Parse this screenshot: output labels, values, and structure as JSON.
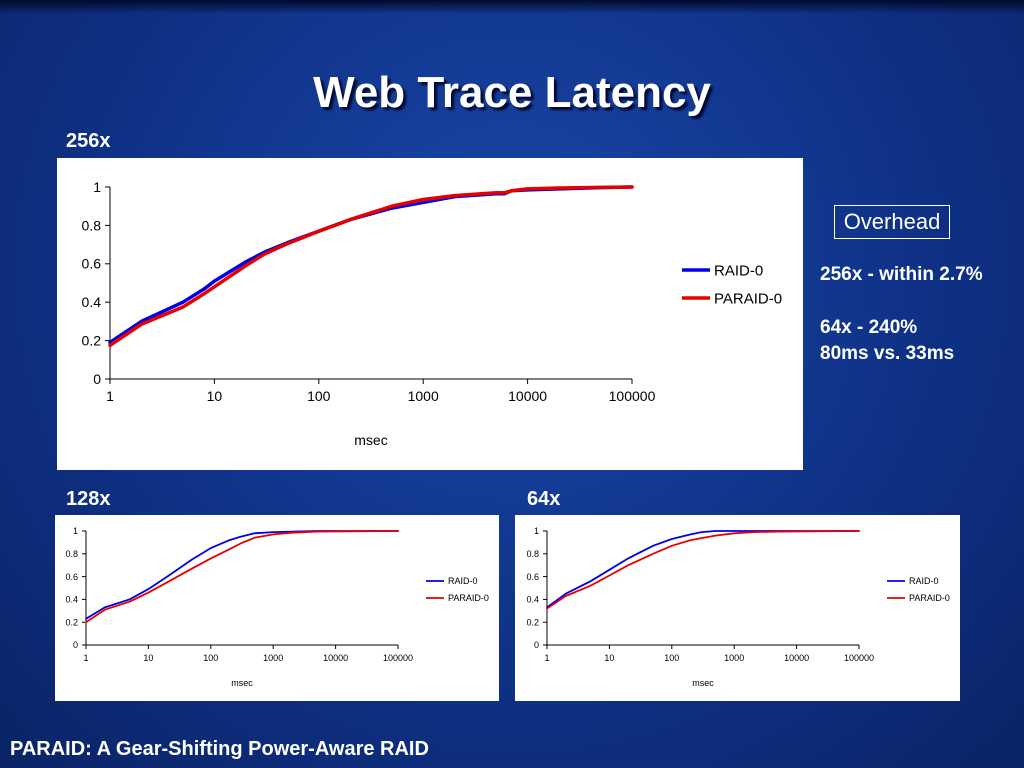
{
  "slide": {
    "title": "Web Trace Latency",
    "footer": "PARAID: A Gear-Shifting Power-Aware RAID"
  },
  "overhead": {
    "heading": "Overhead",
    "lines": [
      "256x - within 2.7%",
      "64x - 240%",
      "80ms vs. 33ms"
    ]
  },
  "colors": {
    "raid0": "#0000e6",
    "paraid0": "#e60000",
    "background": "#0f3287"
  },
  "chart_data": [
    {
      "label": "256x",
      "type": "line",
      "xscale": "log",
      "xlabel": "msec",
      "ylabel": "",
      "xlim": [
        1,
        100000
      ],
      "ylim": [
        0,
        1
      ],
      "xticks": [
        "1",
        "10",
        "100",
        "1000",
        "10000",
        "100000"
      ],
      "yticks": [
        "0",
        "0.2",
        "0.4",
        "0.6",
        "0.8",
        "1"
      ],
      "legend": "right",
      "series": [
        {
          "name": "RAID-0",
          "color": "#0000e6",
          "x": [
            1,
            2,
            5,
            8,
            10,
            20,
            30,
            50,
            100,
            200,
            500,
            1000,
            2000,
            5000,
            6000,
            7000,
            10000,
            20000,
            50000,
            100000
          ],
          "y": [
            0.19,
            0.3,
            0.4,
            0.47,
            0.51,
            0.61,
            0.66,
            0.71,
            0.77,
            0.83,
            0.89,
            0.92,
            0.95,
            0.965,
            0.965,
            0.98,
            0.985,
            0.99,
            0.997,
            1.0
          ]
        },
        {
          "name": "PARAID-0",
          "color": "#e60000",
          "x": [
            1,
            2,
            5,
            8,
            10,
            20,
            30,
            50,
            100,
            200,
            500,
            1000,
            2000,
            5000,
            6000,
            7000,
            10000,
            20000,
            50000,
            100000
          ],
          "y": [
            0.175,
            0.285,
            0.375,
            0.445,
            0.48,
            0.59,
            0.65,
            0.705,
            0.77,
            0.83,
            0.9,
            0.935,
            0.955,
            0.97,
            0.97,
            0.98,
            0.99,
            0.995,
            0.998,
            1.0
          ]
        }
      ]
    },
    {
      "label": "128x",
      "type": "line",
      "xscale": "log",
      "xlabel": "msec",
      "ylabel": "",
      "xlim": [
        1,
        100000
      ],
      "ylim": [
        0,
        1
      ],
      "xticks": [
        "1",
        "10",
        "100",
        "1000",
        "10000",
        "100000"
      ],
      "yticks": [
        "0",
        "0.2",
        "0.4",
        "0.6",
        "0.8",
        "1"
      ],
      "legend": "right",
      "series": [
        {
          "name": "RAID-0",
          "color": "#0000e6",
          "x": [
            1,
            2,
            5,
            10,
            20,
            50,
            100,
            200,
            300,
            500,
            1000,
            2000,
            5000,
            100000
          ],
          "y": [
            0.23,
            0.33,
            0.4,
            0.49,
            0.6,
            0.75,
            0.85,
            0.92,
            0.95,
            0.98,
            0.99,
            0.995,
            1.0,
            1.0
          ]
        },
        {
          "name": "PARAID-0",
          "color": "#e60000",
          "x": [
            1,
            2,
            5,
            10,
            20,
            50,
            100,
            200,
            300,
            500,
            1000,
            2000,
            5000,
            100000
          ],
          "y": [
            0.2,
            0.31,
            0.38,
            0.46,
            0.55,
            0.67,
            0.76,
            0.84,
            0.89,
            0.94,
            0.97,
            0.985,
            0.995,
            1.0
          ]
        }
      ]
    },
    {
      "label": "64x",
      "type": "line",
      "xscale": "log",
      "xlabel": "msec",
      "ylabel": "",
      "xlim": [
        1,
        100000
      ],
      "ylim": [
        0,
        1
      ],
      "xticks": [
        "1",
        "10",
        "100",
        "1000",
        "10000",
        "100000"
      ],
      "yticks": [
        "0",
        "0.2",
        "0.4",
        "0.6",
        "0.8",
        "1"
      ],
      "legend": "right",
      "series": [
        {
          "name": "RAID-0",
          "color": "#0000e6",
          "x": [
            1,
            2,
            5,
            10,
            20,
            50,
            100,
            200,
            300,
            500,
            1000,
            100000
          ],
          "y": [
            0.33,
            0.45,
            0.56,
            0.66,
            0.76,
            0.87,
            0.93,
            0.97,
            0.99,
            1.0,
            1.0,
            1.0
          ]
        },
        {
          "name": "PARAID-0",
          "color": "#e60000",
          "x": [
            1,
            2,
            5,
            10,
            20,
            50,
            100,
            200,
            500,
            1000,
            2000,
            5000,
            100000
          ],
          "y": [
            0.32,
            0.43,
            0.52,
            0.61,
            0.7,
            0.8,
            0.87,
            0.92,
            0.96,
            0.98,
            0.99,
            0.995,
            1.0
          ]
        }
      ]
    }
  ]
}
